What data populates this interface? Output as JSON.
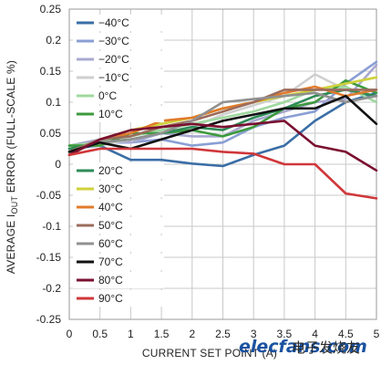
{
  "chart_data": {
    "type": "line",
    "ylabel_prefix": "AVERAGE I",
    "ylabel_sub": "OUT",
    "ylabel_suffix": " ERROR (FULL-SCALE %)",
    "xlabel": "CURRENT SET POINT (A)",
    "xlim": [
      0,
      5
    ],
    "ylim": [
      -0.25,
      0.25
    ],
    "grid": true,
    "x_ticks": [
      "0",
      "0.5",
      "1",
      "1.5",
      "2",
      "2.5",
      "3",
      "3.5",
      "4",
      "4.5",
      "5"
    ],
    "y_ticks": [
      "0.25",
      "0.2",
      "0.15",
      "0.1",
      "0.05",
      "0",
      "-0.05",
      "-0.1",
      "-0.15",
      "-0.2",
      "-0.25"
    ],
    "x": [
      0,
      0.5,
      1,
      1.5,
      2,
      2.5,
      3,
      3.5,
      4,
      4.5,
      5
    ],
    "series": [
      {
        "name": "−40°C",
        "color": "#3a6ea5",
        "values": [
          0.025,
          0.03,
          0.007,
          0.007,
          0.001,
          -0.003,
          0.015,
          0.03,
          0.07,
          0.1,
          0.115
        ]
      },
      {
        "name": "−30°C",
        "color": "#8a9fd4",
        "values": [
          0.02,
          0.035,
          0.035,
          0.04,
          0.03,
          0.035,
          0.06,
          0.075,
          0.085,
          0.13,
          0.165
        ]
      },
      {
        "name": "−20°C",
        "color": "#a8a8d0",
        "values": [
          0.03,
          0.04,
          0.035,
          0.05,
          0.045,
          0.045,
          0.07,
          0.085,
          0.1,
          0.105,
          0.16
        ]
      },
      {
        "name": "−10°C",
        "color": "#cfcfcf",
        "values": [
          0.028,
          0.03,
          0.04,
          0.05,
          0.06,
          0.08,
          0.095,
          0.11,
          0.145,
          0.12,
          0.12
        ]
      },
      {
        "name": "0°C",
        "color": "#9fd89f",
        "values": [
          0.03,
          0.035,
          0.045,
          0.055,
          0.065,
          0.075,
          0.085,
          0.1,
          0.12,
          0.125,
          0.1
        ]
      },
      {
        "name": "10°C",
        "color": "#3c9a3c",
        "values": [
          0.03,
          0.03,
          0.05,
          0.05,
          0.055,
          0.045,
          0.06,
          0.09,
          0.1,
          0.135,
          0.115
        ]
      },
      {
        "name": "20°C",
        "color": "#2e8b57",
        "values": [
          0.025,
          0.035,
          0.04,
          0.05,
          0.06,
          0.055,
          0.075,
          0.09,
          0.11,
          0.12,
          0.11
        ]
      },
      {
        "name": "30°C",
        "color": "#cfd13a",
        "values": [
          0.02,
          0.04,
          0.055,
          0.065,
          0.075,
          0.09,
          0.1,
          0.11,
          0.12,
          0.13,
          0.14
        ]
      },
      {
        "name": "40°C",
        "color": "#e07b2c",
        "values": [
          0.015,
          0.04,
          0.05,
          0.07,
          0.075,
          0.09,
          0.1,
          0.115,
          0.125,
          0.11,
          0.12
        ]
      },
      {
        "name": "50°C",
        "color": "#9b6b5c",
        "values": [
          0.02,
          0.04,
          0.045,
          0.06,
          0.07,
          0.085,
          0.1,
          0.12,
          0.12,
          0.12,
          0.12
        ]
      },
      {
        "name": "60°C",
        "color": "#909090",
        "values": [
          0.02,
          0.035,
          0.04,
          0.05,
          0.07,
          0.1,
          0.105,
          0.11,
          0.115,
          0.1,
          0.11
        ]
      },
      {
        "name": "70°C",
        "color": "#111111",
        "values": [
          0.02,
          0.035,
          0.025,
          0.04,
          0.055,
          0.07,
          0.08,
          0.09,
          0.09,
          0.11,
          0.065
        ]
      },
      {
        "name": "80°C",
        "color": "#7a1030",
        "values": [
          0.015,
          0.04,
          0.055,
          0.06,
          0.065,
          0.06,
          0.065,
          0.07,
          0.03,
          0.02,
          -0.01
        ]
      },
      {
        "name": "90°C",
        "color": "#d0373a",
        "values": [
          0.015,
          0.025,
          0.025,
          0.025,
          0.025,
          0.02,
          0.017,
          0.0,
          0.0,
          -0.047,
          -0.055
        ]
      }
    ]
  },
  "watermark": {
    "latin": "elecfans.com",
    "cjk": "电子发烧友"
  }
}
